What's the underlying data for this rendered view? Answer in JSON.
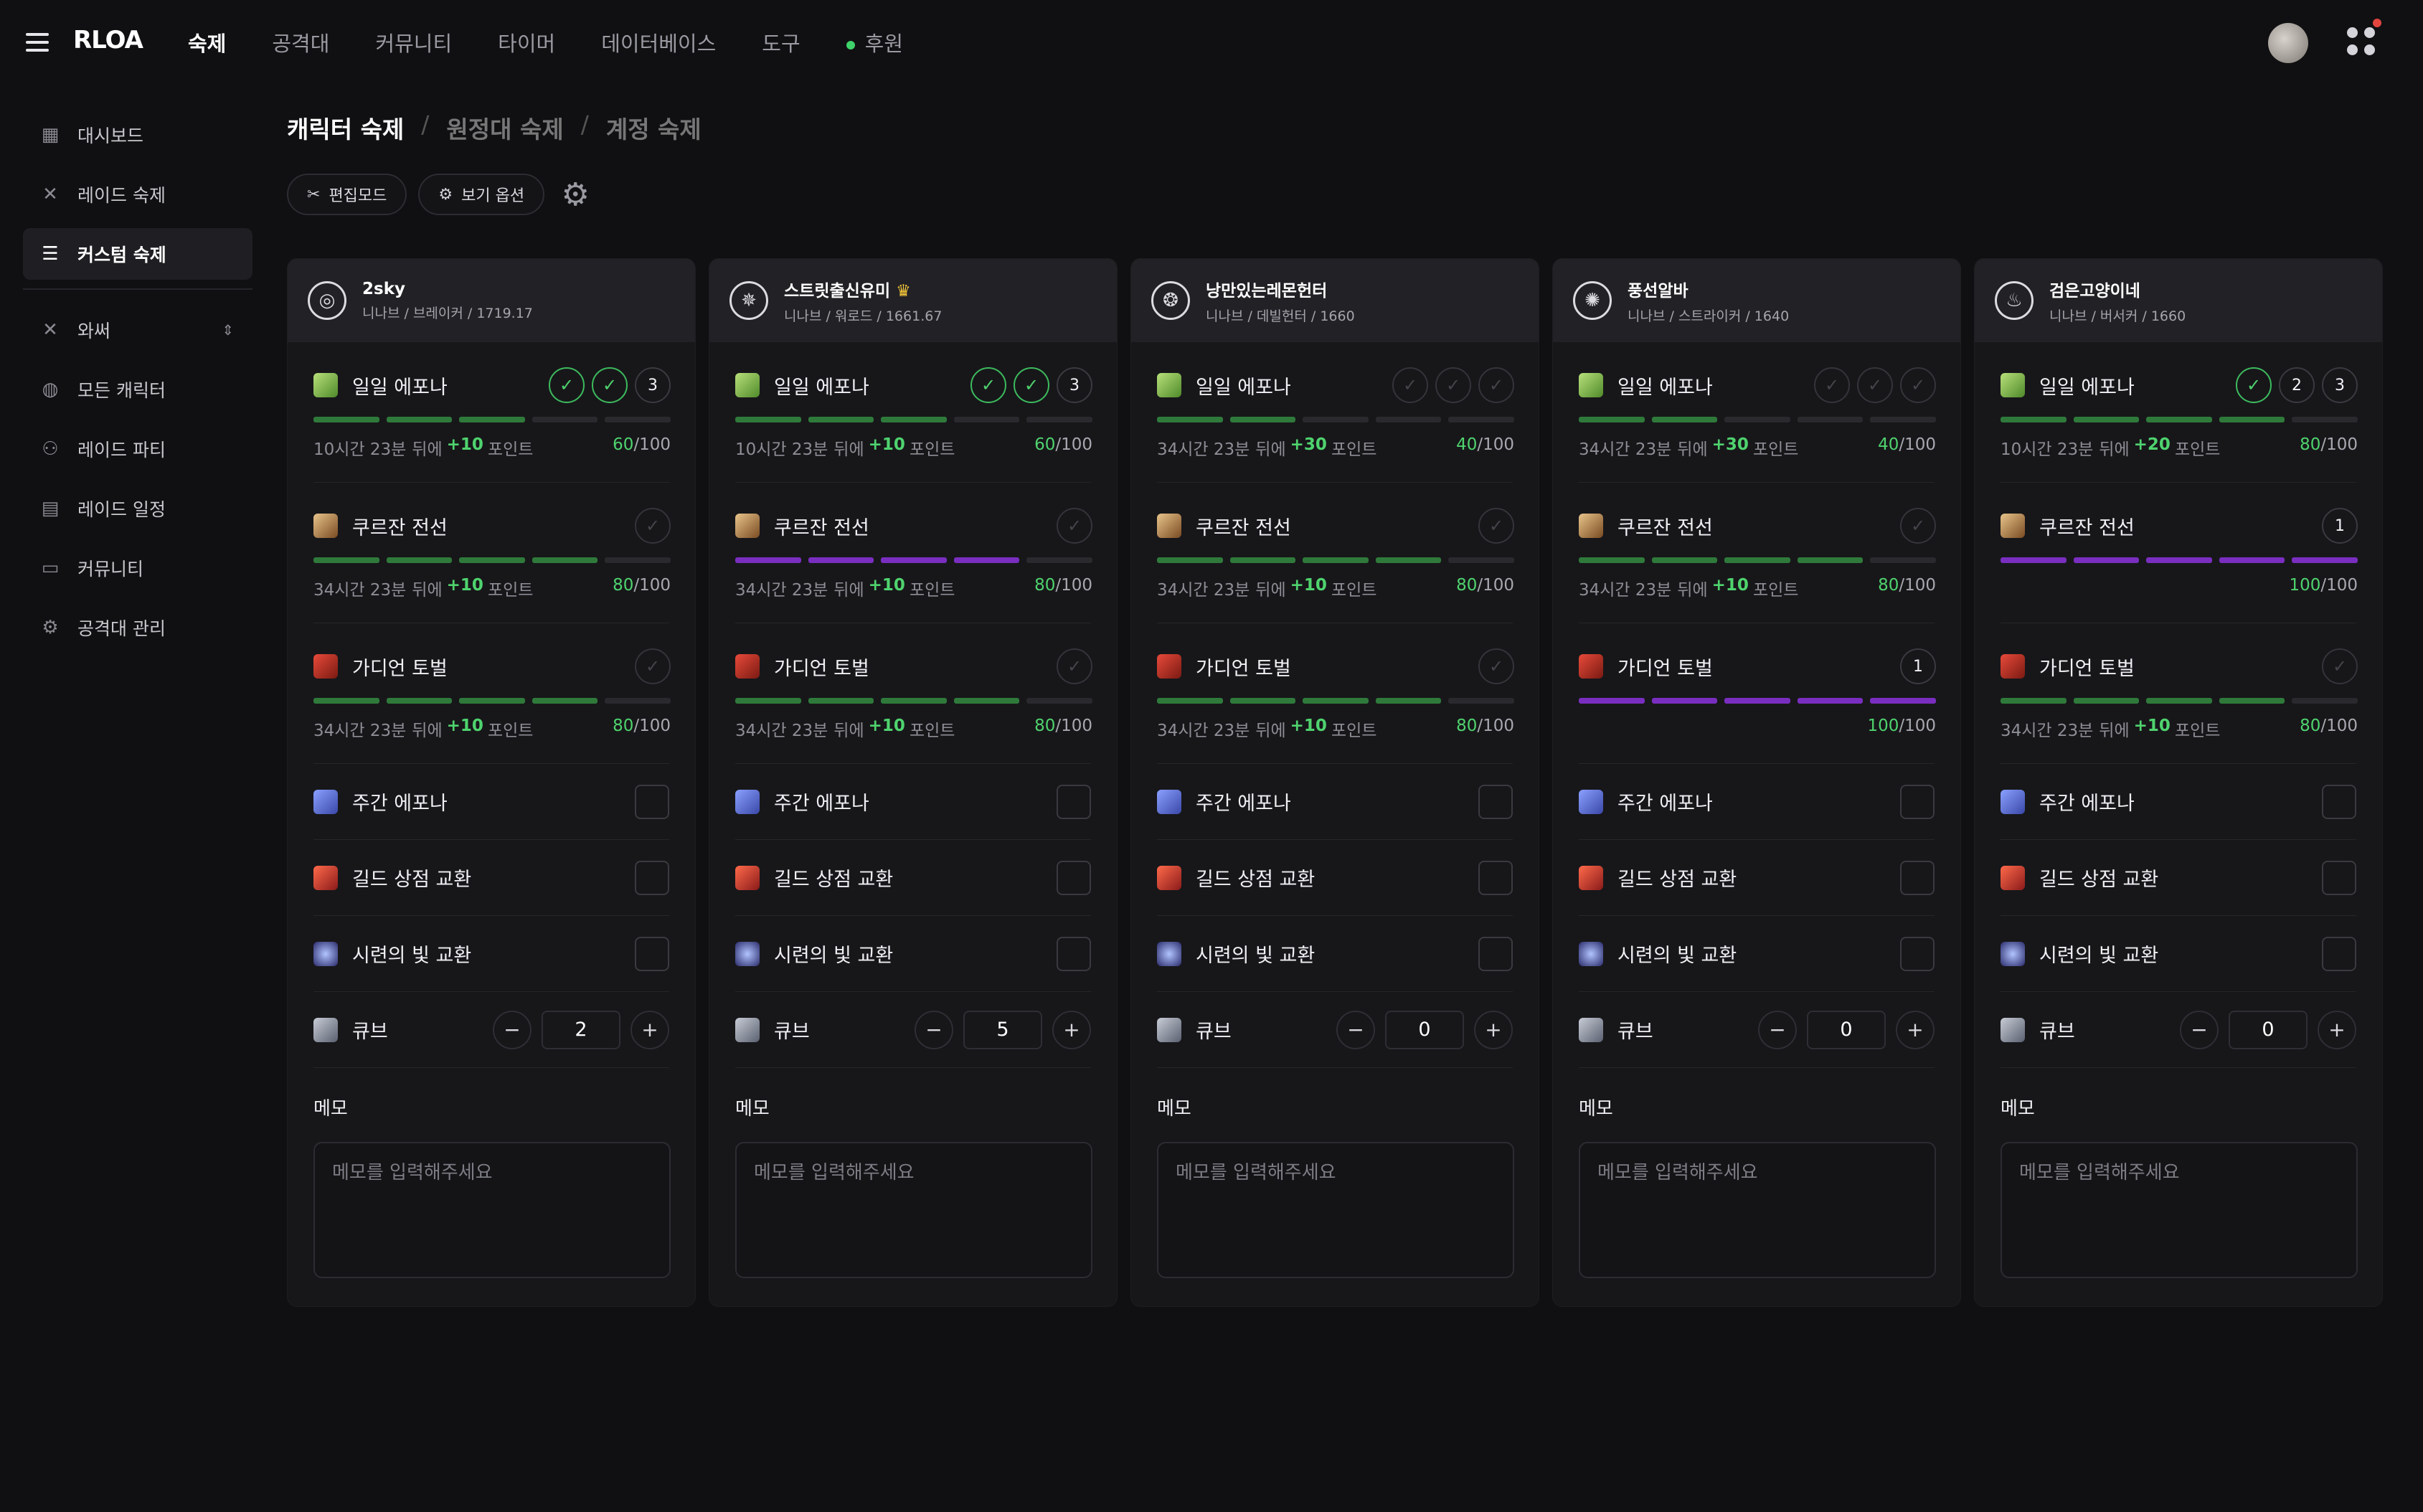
{
  "app": {
    "logo": "RLOA"
  },
  "nav": [
    {
      "label": "숙제",
      "active": true
    },
    {
      "label": "공격대"
    },
    {
      "label": "커뮤니티"
    },
    {
      "label": "타이머"
    },
    {
      "label": "데이터베이스"
    },
    {
      "label": "도구"
    },
    {
      "label": "후원",
      "dot": true
    }
  ],
  "sidebar": {
    "group1": [
      {
        "label": "대시보드",
        "icon": "dashboard-icon"
      },
      {
        "label": "레이드 숙제",
        "icon": "crossed-swords-icon"
      },
      {
        "label": "커스텀 숙제",
        "icon": "checklist-icon",
        "active": true
      }
    ],
    "server": "와써",
    "group2": [
      {
        "label": "모든 캐릭터",
        "icon": "globe-icon"
      },
      {
        "label": "레이드 파티",
        "icon": "users-icon"
      },
      {
        "label": "레이드 일정",
        "icon": "calendar-icon"
      },
      {
        "label": "커뮤니티",
        "icon": "chat-icon"
      },
      {
        "label": "공격대 관리",
        "icon": "gear-icon"
      }
    ]
  },
  "breadcrumb": {
    "c1": "캐릭터 숙제",
    "c2": "원정대 숙제",
    "c3": "계정 숙제",
    "sep": "/"
  },
  "toolbar": {
    "edit": "편집모드",
    "view": "보기 옵션"
  },
  "labels": {
    "daily": "일일 에포나",
    "kurzan": "쿠르잔 전선",
    "guardian": "가디언 토벌",
    "weekly": "주간 에포나",
    "guild": "길드 상점 교환",
    "trial": "시련의 빛 교환",
    "cube": "큐브",
    "memo": "메모",
    "memo_placeholder": "메모를 입력해주세요",
    "suffix_after": "뒤에",
    "suffix_points": "포인트",
    "max": "/100"
  },
  "characters": [
    {
      "name": "2sky",
      "sub": "니나브 / 브레이커 / 1719.17",
      "daily": {
        "checks": [
          "done",
          "done",
          "num"
        ],
        "num": "3",
        "bars": [
          "g",
          "g",
          "g",
          "",
          ""
        ],
        "time": "10시간 23분",
        "gain": "+10",
        "pts": "60"
      },
      "kurzan": {
        "checks": [
          "empty"
        ],
        "bars": [
          "g",
          "g",
          "g",
          "g",
          ""
        ],
        "time": "34시간 23분",
        "gain": "+10",
        "pts": "80"
      },
      "guardian": {
        "checks": [
          "empty"
        ],
        "bars": [
          "g",
          "g",
          "g",
          "g",
          ""
        ],
        "time": "34시간 23분",
        "gain": "+10",
        "pts": "80"
      },
      "cube": "2"
    },
    {
      "name": "스트릿출신유미",
      "crown": "♛",
      "sub": "니나브 / 워로드 / 1661.67",
      "daily": {
        "checks": [
          "done",
          "done",
          "num"
        ],
        "num": "3",
        "bars": [
          "g",
          "g",
          "g",
          "",
          ""
        ],
        "time": "10시간 23분",
        "gain": "+10",
        "pts": "60"
      },
      "kurzan": {
        "checks": [
          "empty"
        ],
        "bars": [
          "p",
          "p",
          "p",
          "p",
          ""
        ],
        "time": "34시간 23분",
        "gain": "+10",
        "pts": "80"
      },
      "guardian": {
        "checks": [
          "empty"
        ],
        "bars": [
          "g",
          "g",
          "g",
          "g",
          ""
        ],
        "time": "34시간 23분",
        "gain": "+10",
        "pts": "80"
      },
      "cube": "5"
    },
    {
      "name": "낭만있는레몬헌터",
      "sub": "니나브 / 데빌헌터 / 1660",
      "daily": {
        "checks": [
          "empty",
          "empty",
          "empty"
        ],
        "bars": [
          "g",
          "g",
          "",
          "",
          ""
        ],
        "time": "34시간 23분",
        "gain": "+30",
        "pts": "40"
      },
      "kurzan": {
        "checks": [
          "empty"
        ],
        "bars": [
          "g",
          "g",
          "g",
          "g",
          ""
        ],
        "time": "34시간 23분",
        "gain": "+10",
        "pts": "80"
      },
      "guardian": {
        "checks": [
          "empty"
        ],
        "bars": [
          "g",
          "g",
          "g",
          "g",
          ""
        ],
        "time": "34시간 23분",
        "gain": "+10",
        "pts": "80"
      },
      "cube": "0"
    },
    {
      "name": "풍선알바",
      "sub": "니나브 / 스트라이커 / 1640",
      "daily": {
        "checks": [
          "empty",
          "empty",
          "empty"
        ],
        "bars": [
          "g",
          "g",
          "",
          "",
          ""
        ],
        "time": "34시간 23분",
        "gain": "+30",
        "pts": "40"
      },
      "kurzan": {
        "checks": [
          "empty"
        ],
        "bars": [
          "g",
          "g",
          "g",
          "g",
          ""
        ],
        "time": "34시간 23분",
        "gain": "+10",
        "pts": "80"
      },
      "guardian": {
        "checks": [
          "num"
        ],
        "num": "1",
        "bars": [
          "p",
          "p",
          "p",
          "p",
          "p"
        ],
        "time": "",
        "gain": "",
        "pts": "100"
      },
      "cube": "0"
    },
    {
      "name": "검은고양이네",
      "sub": "니나브 / 버서커 / 1660",
      "daily": {
        "checks": [
          "done",
          "num",
          "num"
        ],
        "nums": [
          "",
          "2",
          "3"
        ],
        "bars": [
          "g",
          "g",
          "g",
          "g",
          ""
        ],
        "time": "10시간 23분",
        "gain": "+20",
        "pts": "80"
      },
      "kurzan": {
        "checks": [
          "num"
        ],
        "num": "1",
        "bars": [
          "p",
          "p",
          "p",
          "p",
          "p"
        ],
        "time": "",
        "gain": "",
        "pts": "100"
      },
      "guardian": {
        "checks": [
          "empty"
        ],
        "bars": [
          "g",
          "g",
          "g",
          "g",
          ""
        ],
        "time": "34시간 23분",
        "gain": "+10",
        "pts": "80"
      },
      "cube": "0"
    }
  ]
}
